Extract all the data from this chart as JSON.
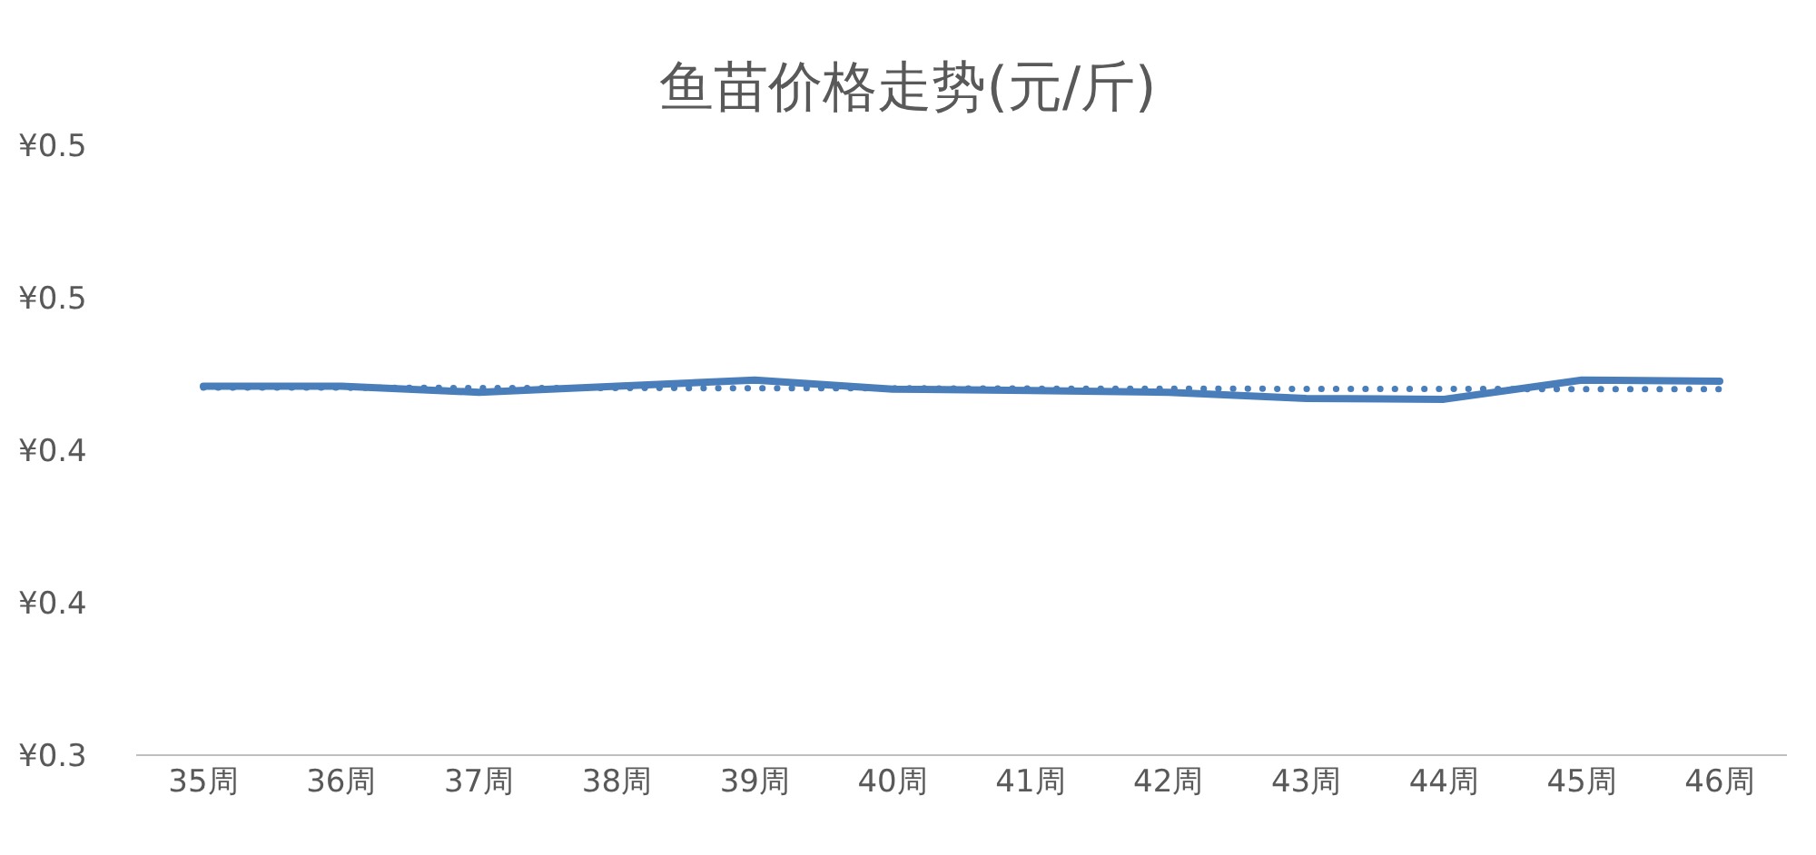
{
  "chart_data": {
    "type": "line",
    "title": "鱼苗价格走势(元/斤)",
    "categories": [
      "35周",
      "36周",
      "37周",
      "38周",
      "39周",
      "40周",
      "41周",
      "42周",
      "43周",
      "44周",
      "45周",
      "46周"
    ],
    "series": [
      {
        "color": "#4a7ebb",
        "values": [
          0.421,
          0.421,
          0.419,
          0.421,
          0.423,
          0.42,
          0.4196,
          0.419,
          0.417,
          0.4167,
          0.423,
          0.4226
        ]
      },
      {
        "type": "line",
        "line_style": "dotted",
        "color": "#4a7ebb",
        "values": [
          0.4205,
          0.4205,
          0.4204,
          0.4204,
          0.4203,
          0.4203,
          0.4202,
          0.4202,
          0.4201,
          0.4201,
          0.42,
          0.42
        ]
      }
    ],
    "ylim": [
      0.3,
      0.5
    ],
    "yticks": [
      {
        "value": 0.3,
        "label": "¥0.3"
      },
      {
        "value": 0.35,
        "label": "¥0.4"
      },
      {
        "value": 0.4,
        "label": "¥0.4"
      },
      {
        "value": 0.45,
        "label": "¥0.5"
      },
      {
        "value": 0.5,
        "label": "¥0.5"
      }
    ],
    "grid": false,
    "legend": false,
    "marker": "none",
    "line_style": "solid"
  }
}
